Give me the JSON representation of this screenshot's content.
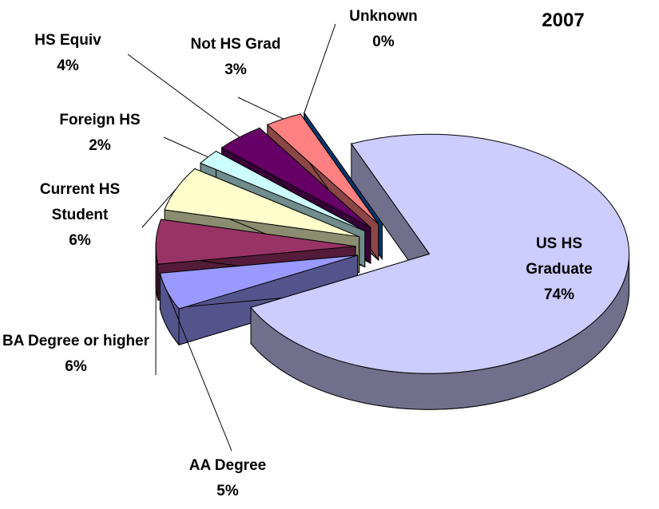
{
  "chart_data": {
    "type": "pie3d",
    "title": "2007",
    "categories": [
      "US HS Graduate",
      "AA Degree",
      "BA Degree or higher",
      "Current HS Student",
      "Foreign HS",
      "HS Equiv",
      "Not HS Grad",
      "Unknown"
    ],
    "values": [
      74,
      5,
      6,
      6,
      2,
      4,
      3,
      0
    ],
    "value_labels": [
      "74%",
      "5%",
      "6%",
      "6%",
      "2%",
      "4%",
      "3%",
      "0%"
    ],
    "colors": [
      "#ccccff",
      "#9999ff",
      "#993366",
      "#ffffcc",
      "#ccffff",
      "#660066",
      "#ff8080",
      "#0066cc"
    ]
  }
}
